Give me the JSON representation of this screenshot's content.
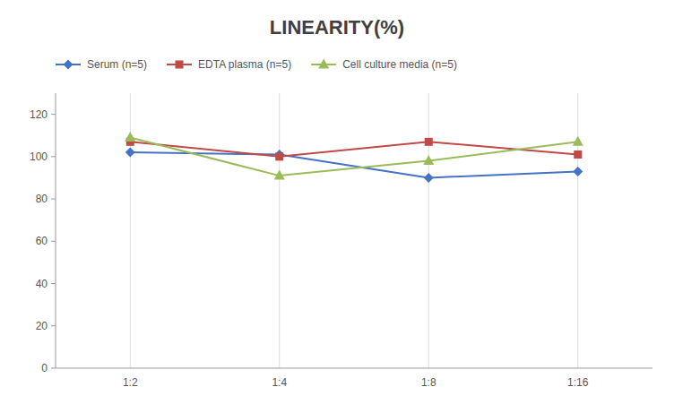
{
  "chart_data": {
    "type": "line",
    "title": "LINEARITY(%)",
    "categories": [
      "1:2",
      "1:4",
      "1:8",
      "1:16"
    ],
    "series": [
      {
        "name": "Serum (n=5)",
        "color": "#4472C4",
        "marker": "diamond",
        "values": [
          102,
          101,
          90,
          93
        ]
      },
      {
        "name": "EDTA plasma (n=5)",
        "color": "#BE4B48",
        "marker": "square",
        "values": [
          107,
          100,
          107,
          101
        ]
      },
      {
        "name": "Cell culture media (n=5)",
        "color": "#9BBB59",
        "marker": "triangle",
        "values": [
          109,
          91,
          98,
          107
        ]
      }
    ],
    "ylim": [
      0,
      130
    ],
    "yticks": [
      0,
      20,
      40,
      60,
      80,
      100,
      120
    ],
    "grid": "x",
    "legend": "top"
  }
}
